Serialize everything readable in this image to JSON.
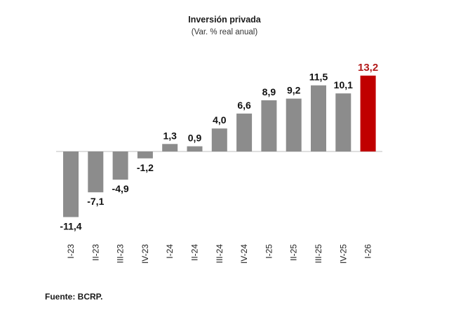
{
  "chart_data": {
    "type": "bar",
    "title": "Inversión privada",
    "subtitle": "(Var. % real anual)",
    "categories": [
      "I-23",
      "II-23",
      "III-23",
      "IV-23",
      "I-24",
      "II-24",
      "III-24",
      "IV-24",
      "I-25",
      "II-25",
      "III-25",
      "IV-25",
      "I-26"
    ],
    "values": [
      -11.4,
      -7.1,
      -4.9,
      -1.2,
      1.3,
      0.9,
      4.0,
      6.6,
      8.9,
      9.2,
      11.5,
      10.1,
      13.2
    ],
    "value_labels": [
      "-11,4",
      "-7,1",
      "-4,9",
      "-1,2",
      "1,3",
      "0,9",
      "4,0",
      "6,6",
      "8,9",
      "9,2",
      "11,5",
      "10,1",
      "13,2"
    ],
    "highlight_index": 12,
    "colors": {
      "bar": "#8c8c8c",
      "highlight": "#c00000",
      "highlight_label": "#b31b1b",
      "axis": "#bfbfbf"
    },
    "grid": false,
    "legend": "none",
    "xlabel": "",
    "ylabel": ""
  },
  "source": "Fuente: BCRP."
}
